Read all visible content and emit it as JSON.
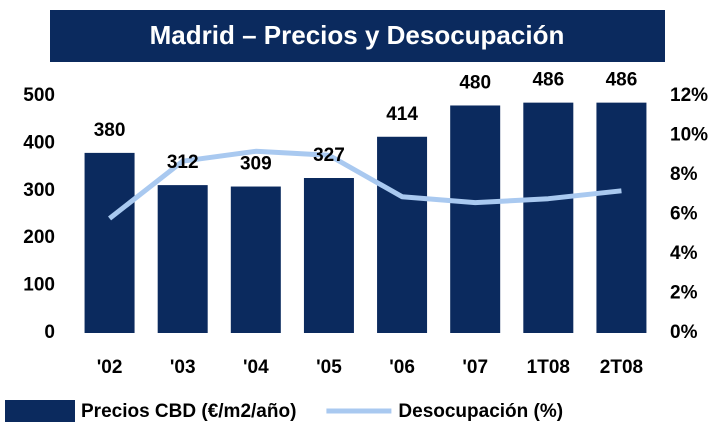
{
  "chart_data": {
    "type": "bar",
    "title": "Madrid – Precios y Desocupación",
    "categories": [
      "'02",
      "'03",
      "'04",
      "'05",
      "'06",
      "'07",
      "1T08",
      "2T08"
    ],
    "series": [
      {
        "name": "Precios CBD (€/m2/año)",
        "type": "bar",
        "color": "#0b2a5e",
        "values": [
          380,
          312,
          309,
          327,
          414,
          480,
          486,
          486
        ]
      },
      {
        "name": "Desocupación (%)",
        "type": "line",
        "axis": "y2",
        "color": "#a9c9f0",
        "values": [
          5.8,
          8.7,
          9.2,
          9.0,
          6.9,
          6.6,
          6.8,
          7.2
        ]
      }
    ],
    "ylim": [
      0,
      500
    ],
    "yticks": [
      0,
      100,
      200,
      300,
      400,
      500
    ],
    "y2lim": [
      0,
      12
    ],
    "y2ticks": [
      {
        "value": 0,
        "label": "0%"
      },
      {
        "value": 2,
        "label": "2%"
      },
      {
        "value": 4,
        "label": "4%"
      },
      {
        "value": 6,
        "label": "6%"
      },
      {
        "value": 8,
        "label": "8%"
      },
      {
        "value": 10,
        "label": "10%"
      },
      {
        "value": 12,
        "label": "12%"
      }
    ],
    "title_color": "#0b2a5e"
  }
}
